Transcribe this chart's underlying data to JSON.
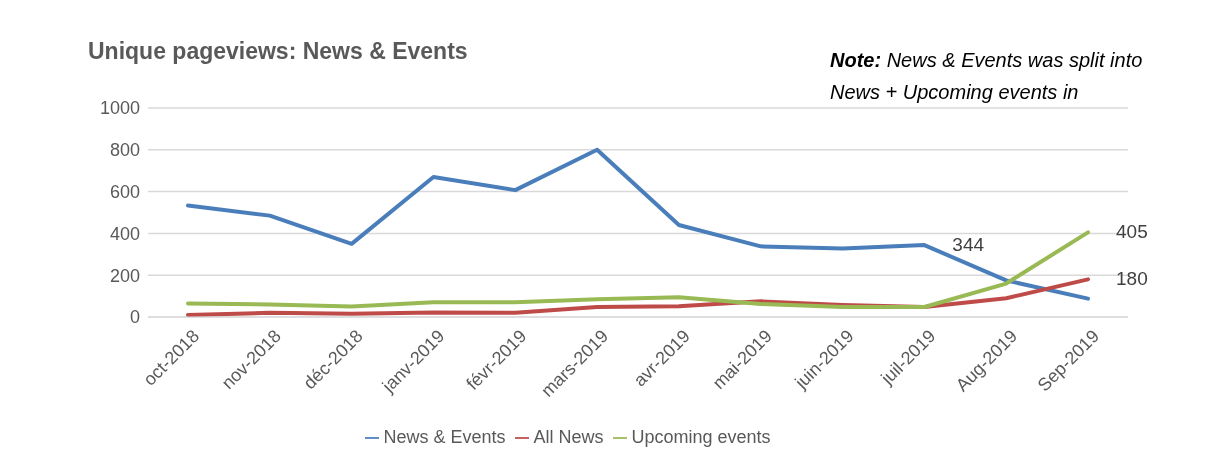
{
  "chart_data": {
    "type": "line",
    "title": "Unique pageviews: News & Events",
    "annotations": [
      "Note: News & Events was split into News + Upcoming events in"
    ],
    "categories": [
      "oct-2018",
      "nov-2018",
      "déc-2018",
      "janv-2019",
      "févr-2019",
      "mars-2019",
      "avr-2019",
      "mai-2019",
      "juin-2019",
      "juil-2019",
      "Aug-2019",
      "Sep-2019"
    ],
    "series": [
      {
        "name": "News & Events",
        "color": "#4a7ebb",
        "values": [
          533,
          485,
          350,
          670,
          607,
          800,
          440,
          338,
          328,
          344,
          175,
          88
        ],
        "value_labels": [
          null,
          null,
          null,
          null,
          null,
          null,
          null,
          null,
          null,
          "344",
          null,
          null
        ]
      },
      {
        "name": "All News",
        "color": "#be4b48",
        "values": [
          10,
          20,
          15,
          22,
          20,
          48,
          52,
          75,
          58,
          48,
          90,
          180
        ],
        "value_labels": [
          null,
          null,
          null,
          null,
          null,
          null,
          null,
          null,
          null,
          null,
          null,
          "180"
        ]
      },
      {
        "name": "Upcoming events",
        "color": "#98b954",
        "values": [
          65,
          60,
          50,
          70,
          70,
          85,
          95,
          62,
          48,
          48,
          160,
          405
        ],
        "value_labels": [
          null,
          null,
          null,
          null,
          null,
          null,
          null,
          null,
          null,
          null,
          null,
          "405"
        ]
      }
    ],
    "ylim": [
      0,
      1000
    ],
    "yticks": [
      0,
      200,
      400,
      600,
      800,
      1000
    ],
    "grid": "y",
    "legend": "bottom",
    "marker": "none",
    "line_style": "solid"
  }
}
